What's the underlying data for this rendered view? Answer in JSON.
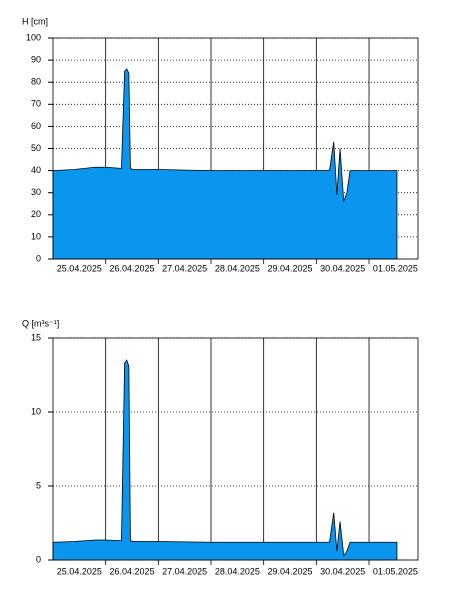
{
  "chart_data": [
    {
      "type": "area",
      "ylabel": "H [cm]",
      "x": [
        0,
        0.4,
        0.8,
        1.0,
        1.3,
        1.36,
        1.4,
        1.44,
        1.47,
        1.52,
        2.0,
        3.0,
        4.0,
        5.25,
        5.33,
        5.39,
        5.45,
        5.52,
        5.58,
        5.64,
        6.53
      ],
      "series": [
        {
          "color": "#0a96ee",
          "values": [
            40,
            40.5,
            41.5,
            41.5,
            41,
            85,
            86,
            84,
            41,
            40.5,
            40.5,
            40,
            40,
            40,
            53,
            29,
            50,
            26,
            30,
            40,
            40
          ]
        }
      ],
      "xlim": [
        0,
        6.93
      ],
      "xticks": [
        {
          "value": 0.5,
          "label": "25.04.2025"
        },
        {
          "value": 1.5,
          "label": "26.04.2025"
        },
        {
          "value": 2.5,
          "label": "27.04.2025"
        },
        {
          "value": 3.5,
          "label": "28.04.2025"
        },
        {
          "value": 4.5,
          "label": "29.04.2025"
        },
        {
          "value": 5.5,
          "label": "30.04.2025"
        },
        {
          "value": 6.5,
          "label": "01.05.2025"
        }
      ],
      "xgrid": [
        1,
        2,
        3,
        4,
        5,
        6
      ],
      "ylim": [
        0,
        100
      ],
      "yticks": [
        0,
        10,
        20,
        30,
        40,
        50,
        60,
        70,
        80,
        90,
        100
      ],
      "grid": true
    },
    {
      "type": "area",
      "ylabel": "Q [m³s⁻¹]",
      "x": [
        0,
        0.4,
        0.8,
        1.0,
        1.3,
        1.36,
        1.4,
        1.44,
        1.47,
        1.52,
        2.0,
        3.0,
        4.0,
        5.25,
        5.33,
        5.39,
        5.45,
        5.52,
        5.58,
        5.64,
        6.53
      ],
      "series": [
        {
          "color": "#0a96ee",
          "values": [
            1.2,
            1.25,
            1.35,
            1.35,
            1.3,
            13.3,
            13.5,
            13.1,
            1.3,
            1.25,
            1.25,
            1.2,
            1.2,
            1.2,
            3.2,
            0.6,
            2.6,
            0.3,
            0.6,
            1.2,
            1.2
          ]
        }
      ],
      "xlim": [
        0,
        6.93
      ],
      "xticks": [
        {
          "value": 0.5,
          "label": "25.04.2025"
        },
        {
          "value": 1.5,
          "label": "26.04.2025"
        },
        {
          "value": 2.5,
          "label": "27.04.2025"
        },
        {
          "value": 3.5,
          "label": "28.04.2025"
        },
        {
          "value": 4.5,
          "label": "29.04.2025"
        },
        {
          "value": 5.5,
          "label": "30.04.2025"
        },
        {
          "value": 6.5,
          "label": "01.05.2025"
        }
      ],
      "xgrid": [
        1,
        2,
        3,
        4,
        5,
        6
      ],
      "ylim": [
        0,
        15
      ],
      "yticks": [
        0,
        5,
        10,
        15
      ],
      "grid": true
    }
  ]
}
